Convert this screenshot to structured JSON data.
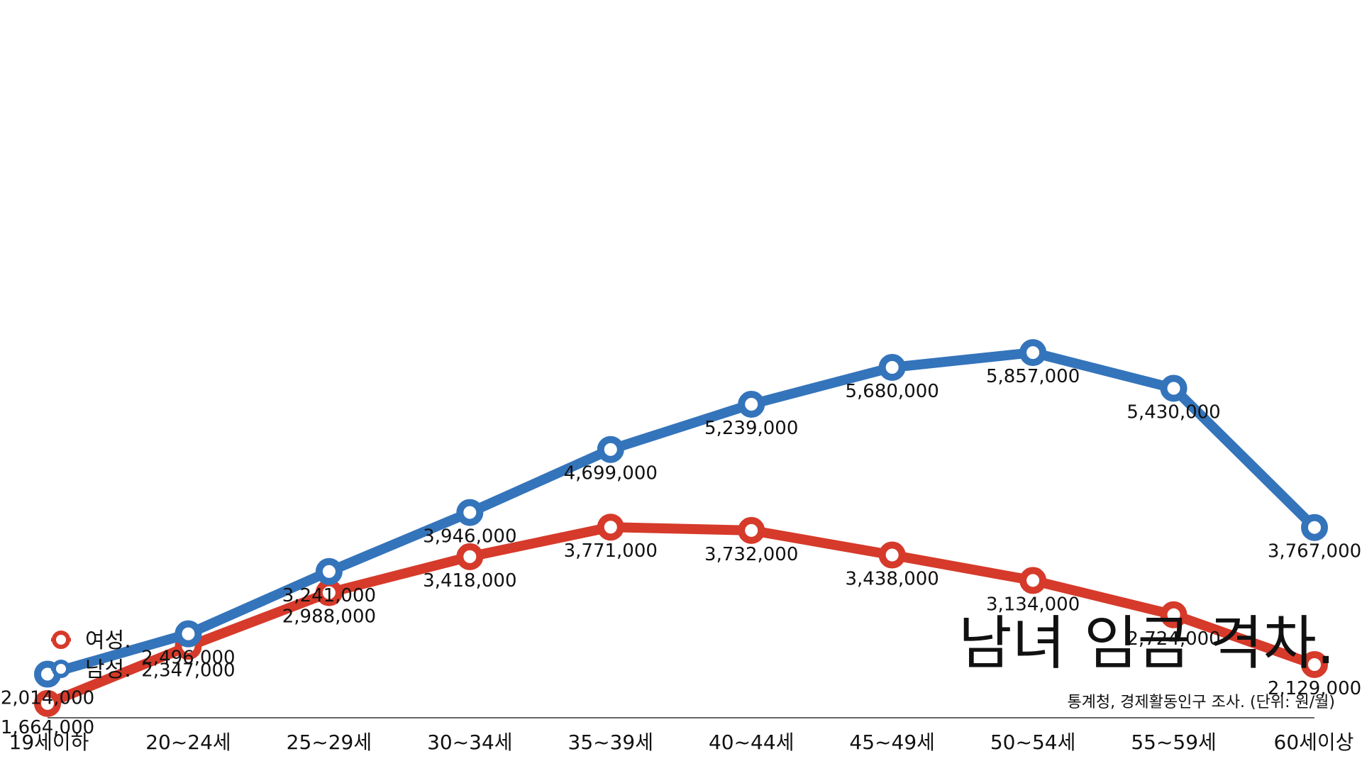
{
  "chart_data": {
    "type": "line",
    "title": "남녀 임금 격차.",
    "source": "통계청, 경제활동인구 조사.  (단위: 원/월)",
    "xlabel": "",
    "ylabel": "",
    "ylim": [
      1000000,
      6500000
    ],
    "grid": false,
    "legend_position": "bottom-left",
    "categories": [
      "19세이하",
      "20~24세",
      "25~29세",
      "30~34세",
      "35~39세",
      "40~44세",
      "45~49세",
      "50~54세",
      "55~59세",
      "60세이상"
    ],
    "series": [
      {
        "name": "여성.",
        "color": "#d63a2a",
        "values": [
          1664000,
          2347000,
          2988000,
          3418000,
          3771000,
          3732000,
          3438000,
          3134000,
          2724000,
          2129000
        ],
        "labels": [
          "1,664,000",
          "2,347,000",
          "2,988,000",
          "3,418,000",
          "3,771,000",
          "3,732,000",
          "3,438,000",
          "3,134,000",
          "2,724,000",
          "2,129,000"
        ]
      },
      {
        "name": "남성.",
        "color": "#3474bb",
        "values": [
          2014000,
          2496000,
          3241000,
          3946000,
          4699000,
          5239000,
          5680000,
          5857000,
          5430000,
          3767000
        ],
        "labels": [
          "2,014,000",
          "2,496,000",
          "3,241,000",
          "3,946,000",
          "4,699,000",
          "5,239,000",
          "5,680,000",
          "5,857,000",
          "5,430,000",
          "3,767,000"
        ]
      }
    ]
  }
}
